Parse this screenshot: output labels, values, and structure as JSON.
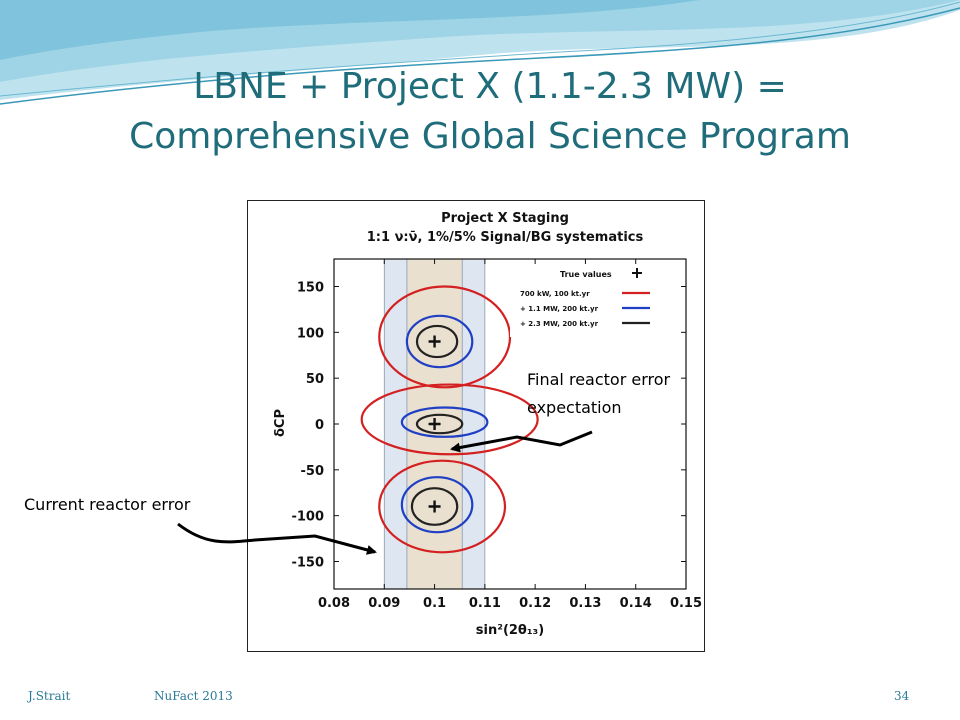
{
  "slide": {
    "title_line1": "LBNE + Project X (1.1-2.3 MW) =",
    "title_line2": "Comprehensive Global Science Program",
    "footer": {
      "author": "J.Strait",
      "event": "NuFact 2013",
      "page": "34"
    }
  },
  "annotations": {
    "final_line1": "Final reactor error",
    "final_line2": "expectation",
    "current": "Current reactor error"
  },
  "chart_data": {
    "type": "scatter",
    "title_line1": "Project X Staging",
    "title_line2": "1:1 ν:ν̄, 1%/5% Signal/BG systematics",
    "xlabel": "sin²(2θ₁₃)",
    "ylabel": "δCP",
    "xlim": [
      0.08,
      0.15
    ],
    "ylim": [
      -180,
      180
    ],
    "xticks": [
      "0.08",
      "0.09",
      "0.1",
      "0.11",
      "0.12",
      "0.13",
      "0.14",
      "0.15"
    ],
    "yticks": [
      "150",
      "100",
      "50",
      "0",
      "-50",
      "-100",
      "-150"
    ],
    "ytick_values": [
      150,
      100,
      50,
      0,
      -50,
      -100,
      -150
    ],
    "xtick_values": [
      0.08,
      0.09,
      0.1,
      0.11,
      0.12,
      0.13,
      0.14,
      0.15
    ],
    "bands": [
      {
        "label": "Current reactor error",
        "range": [
          0.09,
          0.11
        ],
        "color": "#dde6f1"
      },
      {
        "label": "Final reactor error expectation",
        "range": [
          0.0945,
          0.1055
        ],
        "color": "#e9e0cf"
      }
    ],
    "legend": {
      "header": "True values",
      "entries": [
        {
          "label": "700 kW, 100 kt.yr",
          "color": "#d42020"
        },
        {
          "label": "+ 1.1 MW, 200 kt.yr",
          "color": "#1f3fc4"
        },
        {
          "label": "+ 2.3 MW, 200 kt.yr",
          "color": "#222222"
        }
      ],
      "position": "top-right"
    },
    "true_points": [
      {
        "x": 0.1,
        "y": 90
      },
      {
        "x": 0.1,
        "y": 0
      },
      {
        "x": 0.1,
        "y": -90
      }
    ],
    "contours": [
      {
        "series": "700 kW, 100 kt.yr",
        "color": "#d42020",
        "center": [
          0.102,
          95
        ],
        "rx": 0.013,
        "ry": 55
      },
      {
        "series": "+ 1.1 MW, 200 kt.yr",
        "color": "#1f3fc4",
        "center": [
          0.101,
          90
        ],
        "rx": 0.0065,
        "ry": 28
      },
      {
        "series": "+ 2.3 MW, 200 kt.yr",
        "color": "#222222",
        "center": [
          0.1005,
          90
        ],
        "rx": 0.004,
        "ry": 17
      },
      {
        "series": "700 kW, 100 kt.yr",
        "color": "#d42020",
        "center": [
          0.103,
          5
        ],
        "rx": 0.0175,
        "ry": 38
      },
      {
        "series": "+ 1.1 MW, 200 kt.yr",
        "color": "#1f3fc4",
        "center": [
          0.102,
          2
        ],
        "rx": 0.0085,
        "ry": 16
      },
      {
        "series": "+ 2.3 MW, 200 kt.yr",
        "color": "#222222",
        "center": [
          0.101,
          0
        ],
        "rx": 0.0045,
        "ry": 10
      },
      {
        "series": "700 kW, 100 kt.yr",
        "color": "#d42020",
        "center": [
          0.1015,
          -90
        ],
        "rx": 0.0125,
        "ry": 50
      },
      {
        "series": "+ 1.1 MW, 200 kt.yr",
        "color": "#1f3fc4",
        "center": [
          0.1005,
          -88
        ],
        "rx": 0.007,
        "ry": 30
      },
      {
        "series": "+ 2.3 MW, 200 kt.yr",
        "color": "#222222",
        "center": [
          0.1,
          -90
        ],
        "rx": 0.0045,
        "ry": 20
      }
    ]
  }
}
